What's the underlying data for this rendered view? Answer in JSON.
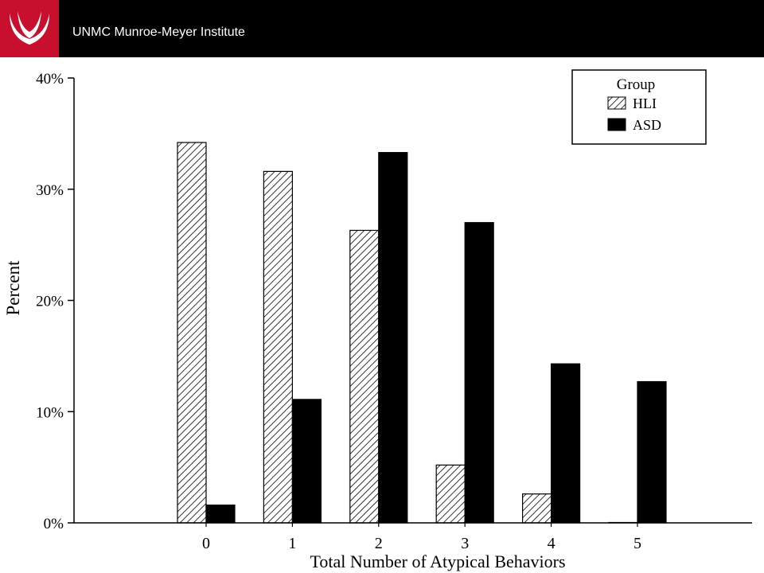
{
  "header": {
    "title": "UNMC Munroe-Meyer Institute",
    "accent_color": "#c8102e",
    "logo_icon": "unmc-logo-icon"
  },
  "chart_data": {
    "type": "bar",
    "categories": [
      "0",
      "1",
      "2",
      "3",
      "4",
      "5"
    ],
    "series": [
      {
        "name": "HLI",
        "values": [
          34.2,
          31.6,
          26.3,
          5.2,
          2.6,
          0
        ],
        "fill": "hatched",
        "color": "#000000"
      },
      {
        "name": "ASD",
        "values": [
          1.6,
          11.1,
          33.3,
          27.0,
          14.3,
          12.7
        ],
        "fill": "solid",
        "color": "#000000"
      }
    ],
    "title": "",
    "xlabel": "Total Number of Atypical Behaviors",
    "ylabel": "Percent",
    "ylim": [
      0,
      40
    ],
    "yticks": [
      "0%",
      "10%",
      "20%",
      "30%",
      "40%"
    ],
    "legend": {
      "title": "Group",
      "position": "top-right"
    },
    "grid": false
  }
}
